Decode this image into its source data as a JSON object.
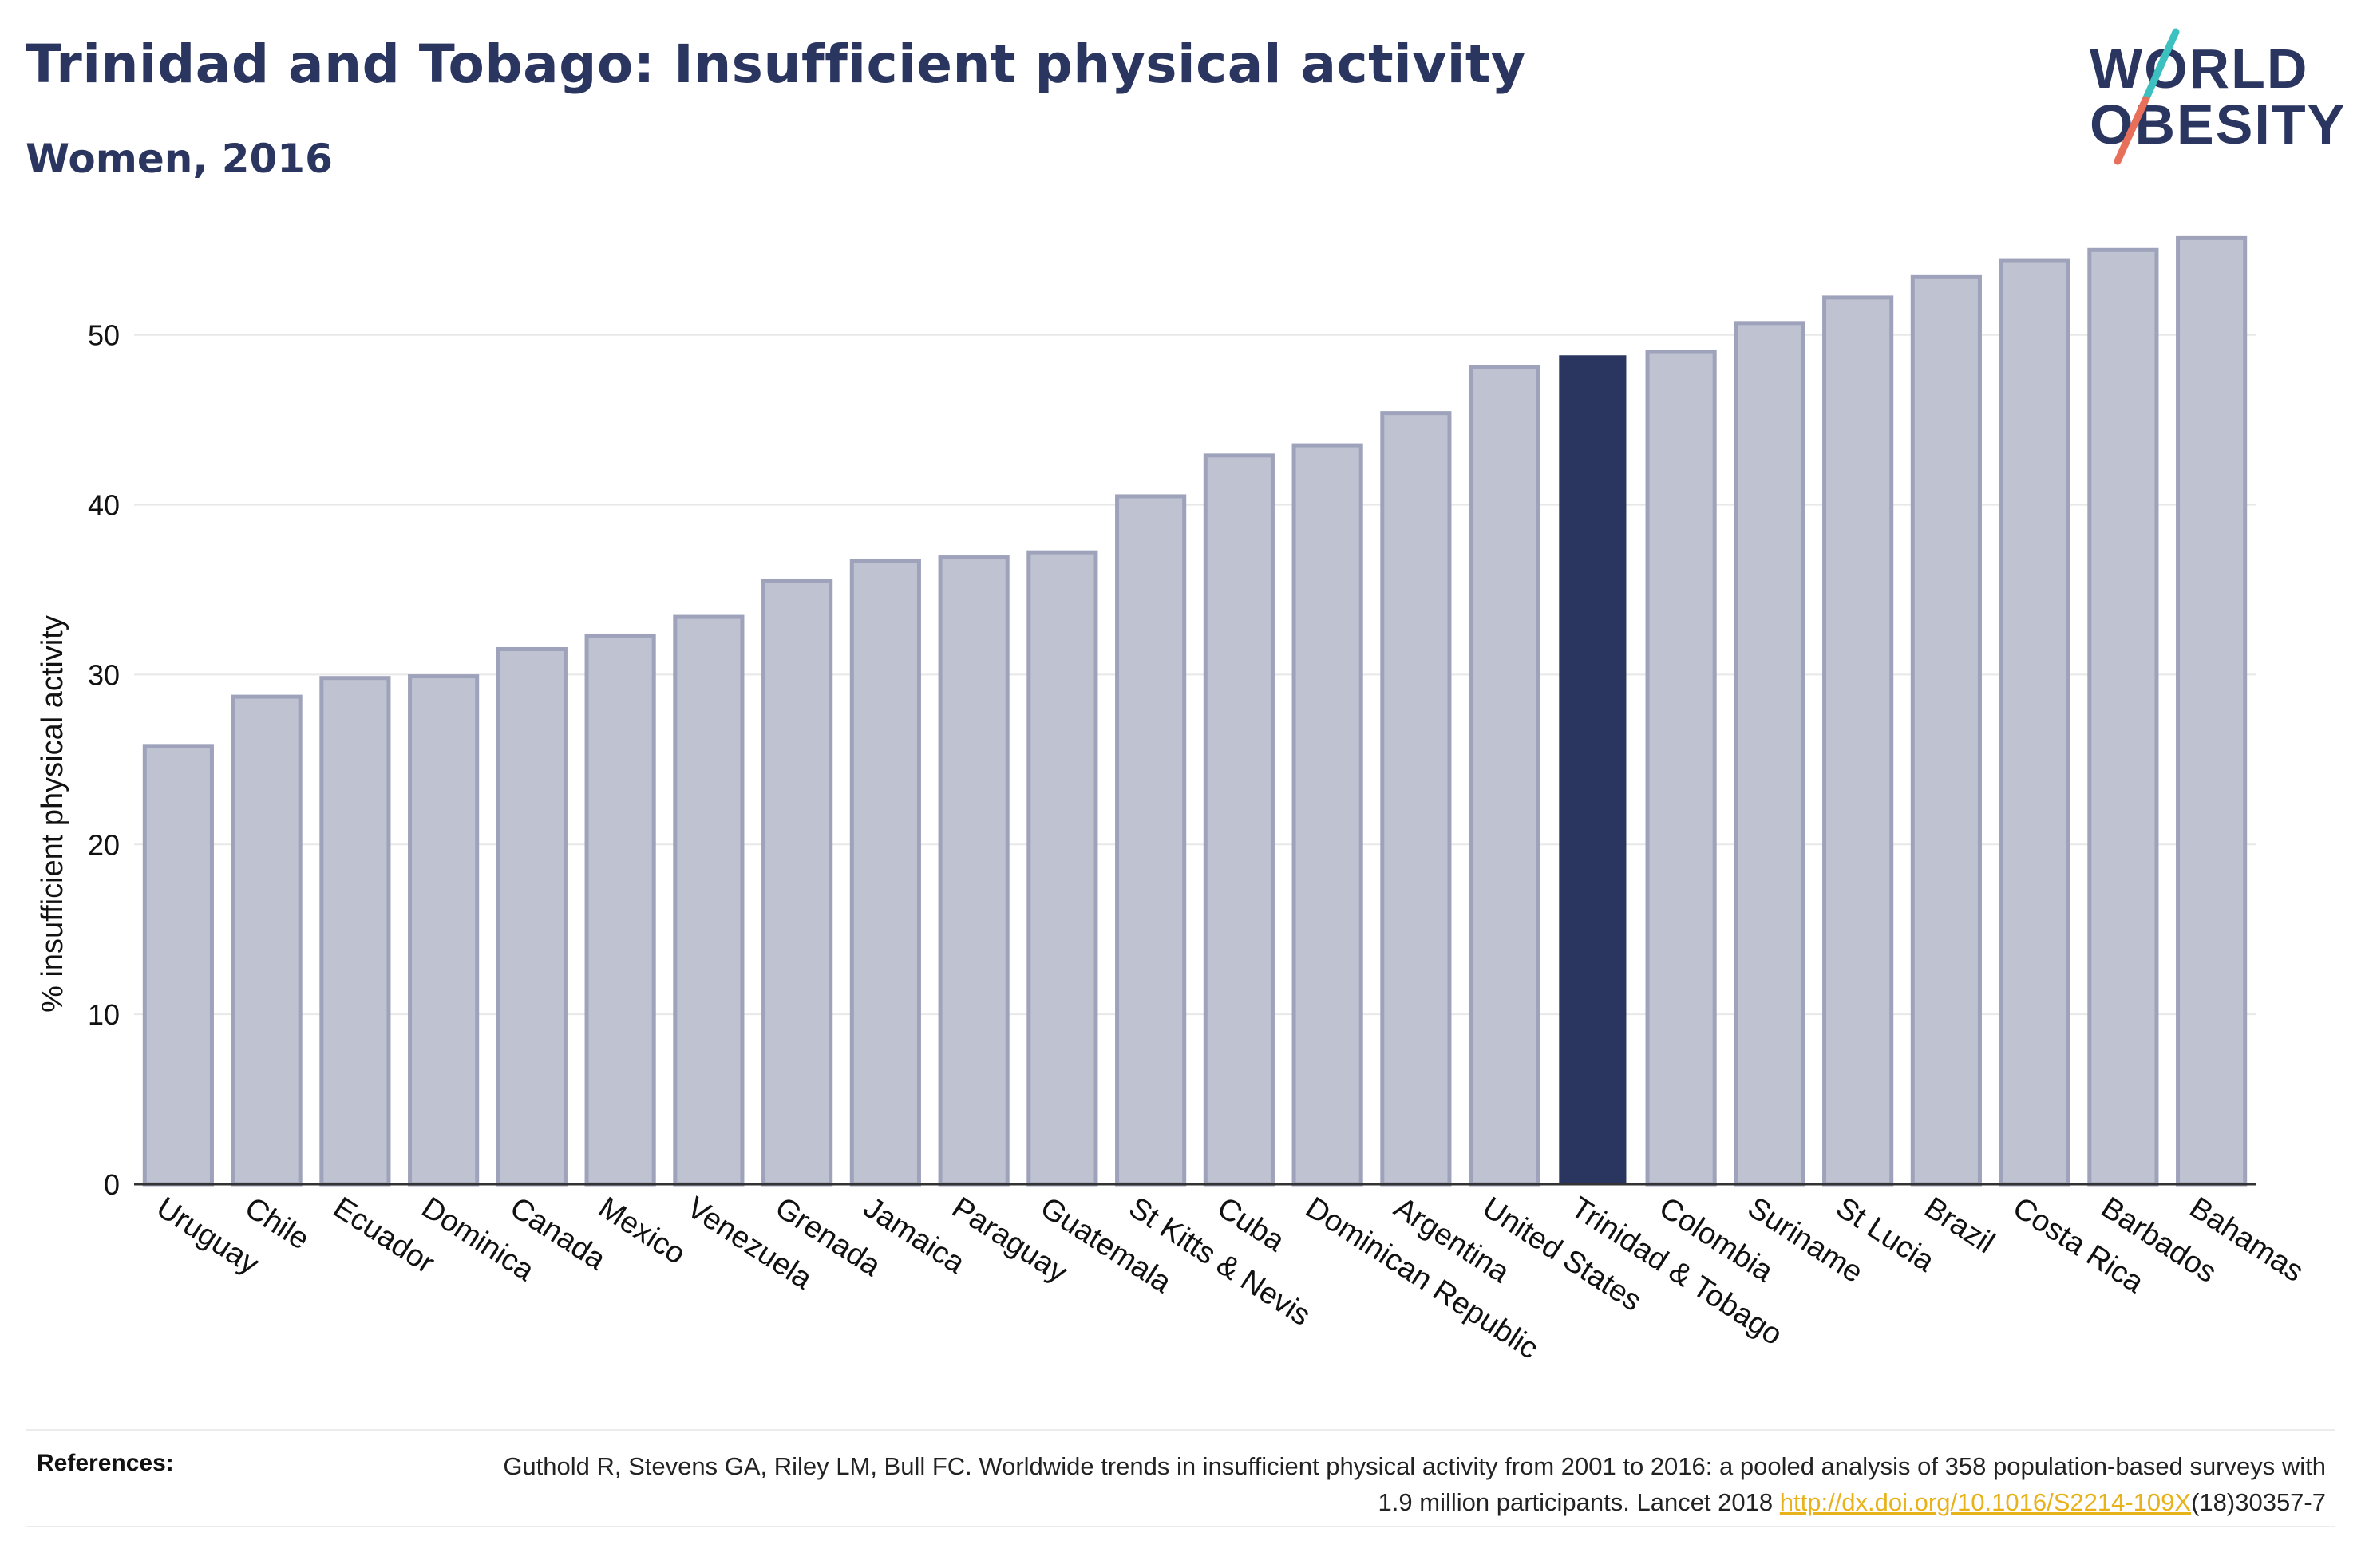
{
  "header": {
    "title": "Trinidad and Tobago: Insufficient physical activity",
    "subtitle": "Women, 2016"
  },
  "logo": {
    "line1": "WORLD",
    "line2": "OBESITY",
    "text_color": "#2a3560",
    "slash_colors": [
      "#3cc0c0",
      "#e8705a"
    ]
  },
  "chart_data": {
    "type": "bar",
    "ylabel": "% insufficient physical activity",
    "ylim": [
      0,
      56
    ],
    "yticks": [
      0,
      10,
      20,
      30,
      40,
      50
    ],
    "grid": true,
    "categories": [
      "Uruguay",
      "Chile",
      "Ecuador",
      "Dominica",
      "Canada",
      "Mexico",
      "Venezuela",
      "Grenada",
      "Jamaica",
      "Paraguay",
      "Guatemala",
      "St Kitts & Nevis",
      "Cuba",
      "Dominican Republic",
      "Argentina",
      "United States",
      "Trinidad & Tobago",
      "Colombia",
      "Suriname",
      "St Lucia",
      "Brazil",
      "Costa Rica",
      "Barbados",
      "Bahamas"
    ],
    "values": [
      25.8,
      28.7,
      29.8,
      29.9,
      31.5,
      32.3,
      33.4,
      35.5,
      36.7,
      36.9,
      37.2,
      40.5,
      42.9,
      43.5,
      45.4,
      48.1,
      48.8,
      49.0,
      50.7,
      52.2,
      53.4,
      54.4,
      55.0,
      55.7
    ],
    "highlight": "Trinidad & Tobago",
    "colors": {
      "bar": "#bfc2d0",
      "bar_outline": "#9ea3bb",
      "highlight": "#2a3560",
      "grid": "#e8e8e8",
      "axis": "#333333"
    }
  },
  "references": {
    "label": "References:",
    "text_before_link": "Guthold R, Stevens GA, Riley LM, Bull FC. Worldwide trends in insufficient physical activity from 2001 to 2016: a pooled analysis of 358 population-based surveys with 1.9 million participants. Lancet 2018 ",
    "link_text": "http://dx.doi.org/10.1016/S2214-109X",
    "text_after_link": "(18)30357-7"
  }
}
